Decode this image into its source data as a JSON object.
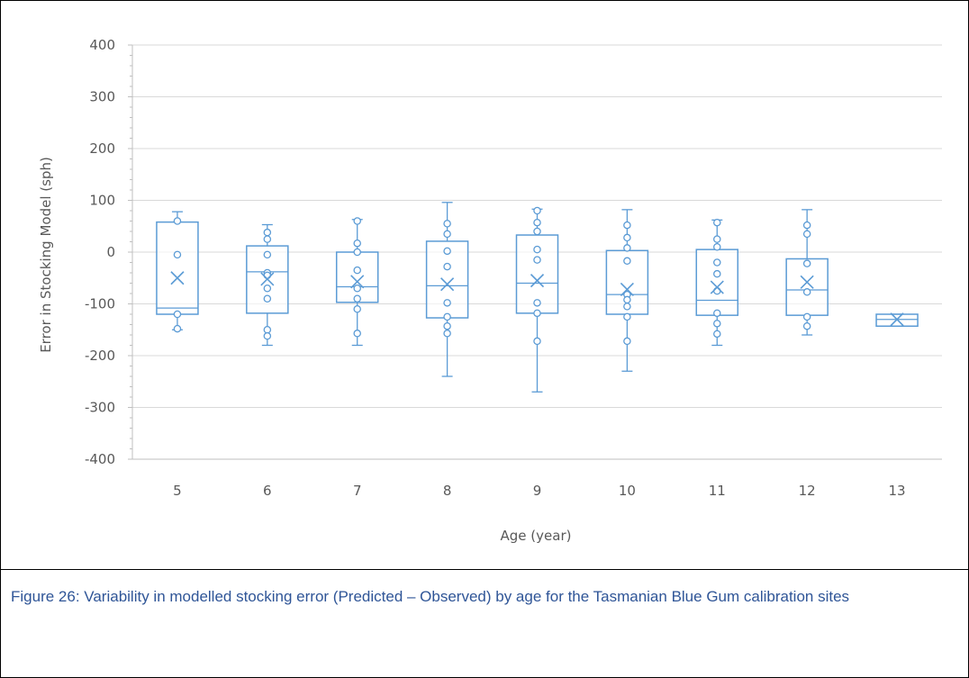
{
  "caption": "Figure 26: Variability in modelled stocking error (Predicted – Observed) by age for the Tasmanian Blue Gum calibration sites",
  "colors": {
    "series": "#5b9bd5",
    "grid": "#d9d9d9",
    "axis": "#bfbfbf",
    "text": "#595959",
    "caption": "#2f5597"
  },
  "chart_data": {
    "type": "boxplot",
    "title": "",
    "xlabel": "Age (year)",
    "ylabel": "Error in Stocking Model (sph)",
    "ylim": [
      -400,
      400
    ],
    "yticks": [
      400,
      300,
      200,
      100,
      0,
      -100,
      -200,
      -300,
      -400
    ],
    "grid": true,
    "legend": "none",
    "categories": [
      "5",
      "6",
      "7",
      "8",
      "9",
      "10",
      "11",
      "12",
      "13"
    ],
    "boxes": [
      {
        "category": "5",
        "min": -150,
        "q1": -120,
        "median": -108,
        "q3": 58,
        "max": 78,
        "mean": -50,
        "points": [
          60,
          -5,
          -120,
          -148
        ]
      },
      {
        "category": "6",
        "min": -180,
        "q1": -118,
        "median": -38,
        "q3": 12,
        "max": 53,
        "mean": -52,
        "points": [
          38,
          25,
          -5,
          -40,
          -45,
          -70,
          -90,
          -150,
          -162
        ]
      },
      {
        "category": "7",
        "min": -180,
        "q1": -97,
        "median": -67,
        "q3": 0,
        "max": 63,
        "mean": -57,
        "points": [
          60,
          17,
          0,
          -35,
          -70,
          -90,
          -110,
          -157
        ]
      },
      {
        "category": "8",
        "min": -240,
        "q1": -127,
        "median": -65,
        "q3": 21,
        "max": 96,
        "mean": -62,
        "points": [
          55,
          35,
          2,
          -28,
          -98,
          -125,
          -143,
          -157
        ]
      },
      {
        "category": "9",
        "min": -270,
        "q1": -118,
        "median": -60,
        "q3": 33,
        "max": 83,
        "mean": -55,
        "points": [
          80,
          57,
          40,
          5,
          -15,
          -98,
          -118,
          -172
        ]
      },
      {
        "category": "10",
        "min": -230,
        "q1": -120,
        "median": -82,
        "q3": 3,
        "max": 82,
        "mean": -72,
        "points": [
          52,
          28,
          8,
          -17,
          -82,
          -92,
          -105,
          -125,
          -172
        ]
      },
      {
        "category": "11",
        "min": -180,
        "q1": -122,
        "median": -93,
        "q3": 5,
        "max": 62,
        "mean": -68,
        "points": [
          57,
          25,
          10,
          -20,
          -42,
          -75,
          -118,
          -138,
          -158
        ]
      },
      {
        "category": "12",
        "min": -160,
        "q1": -122,
        "median": -73,
        "q3": -13,
        "max": 82,
        "mean": -58,
        "points": [
          52,
          35,
          -22,
          -77,
          -125,
          -143
        ]
      },
      {
        "category": "13",
        "min": -143,
        "q1": -143,
        "median": -130,
        "q3": -120,
        "max": -120,
        "mean": -130,
        "points": []
      }
    ]
  }
}
